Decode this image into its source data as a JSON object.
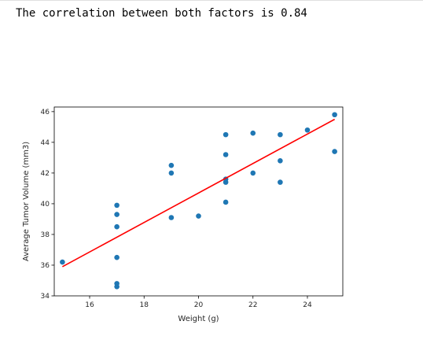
{
  "output": {
    "text": "The correlation between both factors is 0.84"
  },
  "chart_data": {
    "type": "scatter",
    "title": "",
    "xlabel": "Weight (g)",
    "ylabel": "Average Tumor Volume (mm3)",
    "xlim": [
      14.7,
      25.3
    ],
    "ylim": [
      34,
      46.3
    ],
    "xticks": [
      16,
      18,
      20,
      22,
      24
    ],
    "yticks": [
      34,
      36,
      38,
      40,
      42,
      44,
      46
    ],
    "grid": false,
    "points": [
      [
        15,
        36.2
      ],
      [
        17,
        34.6
      ],
      [
        17,
        34.8
      ],
      [
        17,
        36.5
      ],
      [
        17,
        38.5
      ],
      [
        17,
        39.3
      ],
      [
        17,
        39.9
      ],
      [
        19,
        39.1
      ],
      [
        19,
        42.0
      ],
      [
        19,
        42.5
      ],
      [
        20,
        39.2
      ],
      [
        21,
        40.1
      ],
      [
        21,
        41.4
      ],
      [
        21,
        41.6
      ],
      [
        21,
        43.2
      ],
      [
        21,
        44.5
      ],
      [
        22,
        42.0
      ],
      [
        22,
        44.6
      ],
      [
        23,
        41.4
      ],
      [
        23,
        42.8
      ],
      [
        23,
        44.5
      ],
      [
        24,
        44.8
      ],
      [
        25,
        43.4
      ],
      [
        25,
        45.8
      ]
    ],
    "regression": {
      "x": [
        15,
        25
      ],
      "y": [
        35.9,
        45.5
      ]
    },
    "colors": {
      "points": "#1f77b4",
      "line": "#ff0000"
    }
  }
}
